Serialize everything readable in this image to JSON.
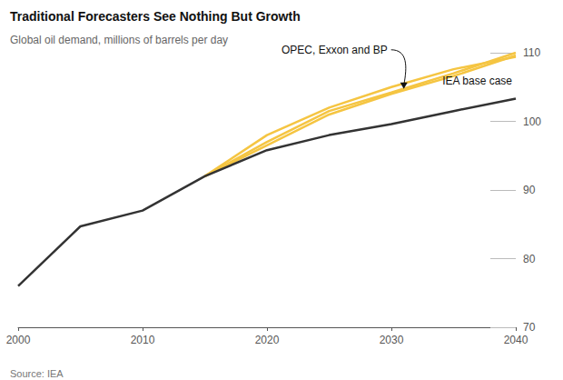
{
  "chart_data": {
    "type": "line",
    "title": "Traditional Forecasters See Nothing But Growth",
    "subtitle": "Global oil demand, millions of barrels per day",
    "source": "Source: IEA",
    "x": [
      2000,
      2005,
      2010,
      2015,
      2020,
      2025,
      2030,
      2035,
      2040
    ],
    "series": [
      {
        "color": "#f5c542",
        "values": [
          null,
          null,
          null,
          92,
          98,
          102,
          105,
          107.6,
          109.4
        ]
      },
      {
        "color": "#f5c542",
        "values": [
          null,
          null,
          null,
          92,
          97,
          101.5,
          104.2,
          107,
          110
        ]
      },
      {
        "color": "#f5c542",
        "values": [
          null,
          null,
          null,
          92,
          96.5,
          101,
          104,
          106.6,
          109.6
        ]
      },
      {
        "name": "IEA base case",
        "color": "#333333",
        "values": [
          76,
          84.7,
          87,
          92,
          95.8,
          98,
          99.6,
          101.5,
          103.3
        ]
      }
    ],
    "annotations": [
      {
        "text": "OPEC, Exxon and BP",
        "x": 2031,
        "y": 104.6
      }
    ],
    "xlim": [
      2000,
      2040
    ],
    "xticks": [
      2000,
      2010,
      2020,
      2030,
      2040
    ],
    "ylim": [
      70,
      110
    ],
    "yticks": [
      70,
      80,
      90,
      100,
      110
    ],
    "grid": false
  }
}
